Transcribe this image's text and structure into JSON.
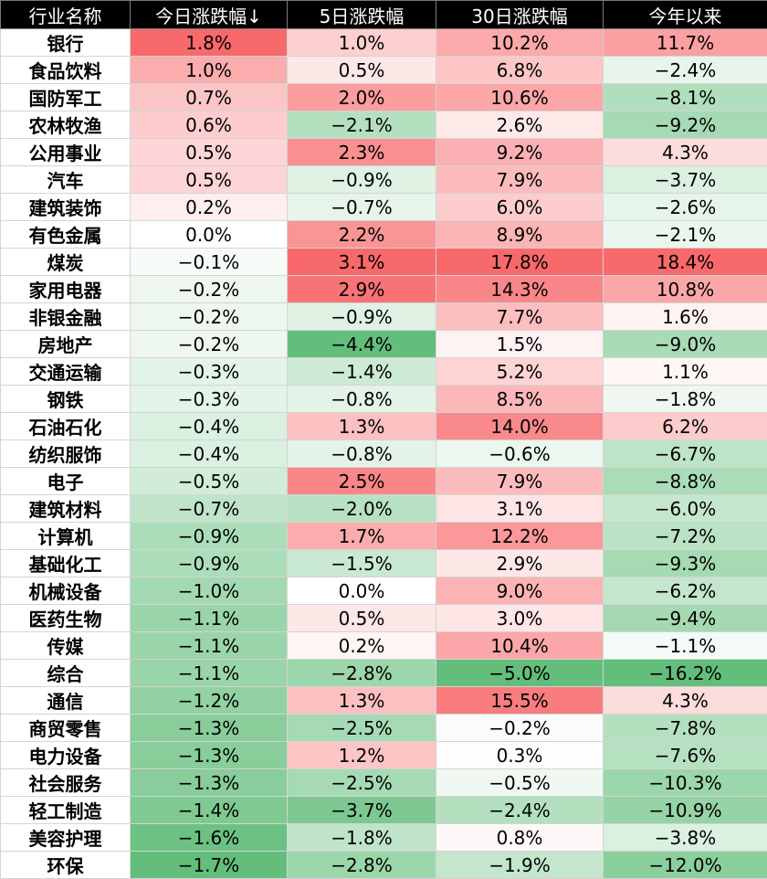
{
  "chart_data": {
    "type": "table",
    "columns": [
      "行业名称",
      "今日涨跌幅↓",
      "5日涨跌幅",
      "30日涨跌幅",
      "今年以来"
    ],
    "rows": [
      {
        "name": "银行",
        "cells": [
          "1.8%",
          "1.0%",
          "10.2%",
          "11.7%"
        ],
        "values": [
          1.8,
          1.0,
          10.2,
          11.7
        ]
      },
      {
        "name": "食品饮料",
        "cells": [
          "1.0%",
          "0.5%",
          "6.8%",
          "−2.4%"
        ],
        "values": [
          1.0,
          0.5,
          6.8,
          -2.4
        ]
      },
      {
        "name": "国防军工",
        "cells": [
          "0.7%",
          "2.0%",
          "10.6%",
          "−8.1%"
        ],
        "values": [
          0.7,
          2.0,
          10.6,
          -8.1
        ]
      },
      {
        "name": "农林牧渔",
        "cells": [
          "0.6%",
          "−2.1%",
          "2.6%",
          "−9.2%"
        ],
        "values": [
          0.6,
          -2.1,
          2.6,
          -9.2
        ]
      },
      {
        "name": "公用事业",
        "cells": [
          "0.5%",
          "2.3%",
          "9.2%",
          "4.3%"
        ],
        "values": [
          0.5,
          2.3,
          9.2,
          4.3
        ]
      },
      {
        "name": "汽车",
        "cells": [
          "0.5%",
          "−0.9%",
          "7.9%",
          "−3.7%"
        ],
        "values": [
          0.5,
          -0.9,
          7.9,
          -3.7
        ]
      },
      {
        "name": "建筑装饰",
        "cells": [
          "0.2%",
          "−0.7%",
          "6.0%",
          "−2.6%"
        ],
        "values": [
          0.2,
          -0.7,
          6.0,
          -2.6
        ]
      },
      {
        "name": "有色金属",
        "cells": [
          "0.0%",
          "2.2%",
          "8.9%",
          "−2.1%"
        ],
        "values": [
          0.0,
          2.2,
          8.9,
          -2.1
        ]
      },
      {
        "name": "煤炭",
        "cells": [
          "−0.1%",
          "3.1%",
          "17.8%",
          "18.4%"
        ],
        "values": [
          -0.1,
          3.1,
          17.8,
          18.4
        ]
      },
      {
        "name": "家用电器",
        "cells": [
          "−0.2%",
          "2.9%",
          "14.3%",
          "10.8%"
        ],
        "values": [
          -0.2,
          2.9,
          14.3,
          10.8
        ]
      },
      {
        "name": "非银金融",
        "cells": [
          "−0.2%",
          "−0.9%",
          "7.7%",
          "1.6%"
        ],
        "values": [
          -0.2,
          -0.9,
          7.7,
          1.6
        ]
      },
      {
        "name": "房地产",
        "cells": [
          "−0.2%",
          "−4.4%",
          "1.5%",
          "−9.0%"
        ],
        "values": [
          -0.2,
          -4.4,
          1.5,
          -9.0
        ]
      },
      {
        "name": "交通运输",
        "cells": [
          "−0.3%",
          "−1.4%",
          "5.2%",
          "1.1%"
        ],
        "values": [
          -0.3,
          -1.4,
          5.2,
          1.1
        ]
      },
      {
        "name": "钢铁",
        "cells": [
          "−0.3%",
          "−0.8%",
          "8.5%",
          "−1.8%"
        ],
        "values": [
          -0.3,
          -0.8,
          8.5,
          -1.8
        ]
      },
      {
        "name": "石油石化",
        "cells": [
          "−0.4%",
          "1.3%",
          "14.0%",
          "6.2%"
        ],
        "values": [
          -0.4,
          1.3,
          14.0,
          6.2
        ]
      },
      {
        "name": "纺织服饰",
        "cells": [
          "−0.4%",
          "−0.8%",
          "−0.6%",
          "−6.7%"
        ],
        "values": [
          -0.4,
          -0.8,
          -0.6,
          -6.7
        ]
      },
      {
        "name": "电子",
        "cells": [
          "−0.5%",
          "2.5%",
          "7.9%",
          "−8.8%"
        ],
        "values": [
          -0.5,
          2.5,
          7.9,
          -8.8
        ]
      },
      {
        "name": "建筑材料",
        "cells": [
          "−0.7%",
          "−2.0%",
          "3.1%",
          "−6.0%"
        ],
        "values": [
          -0.7,
          -2.0,
          3.1,
          -6.0
        ]
      },
      {
        "name": "计算机",
        "cells": [
          "−0.9%",
          "1.7%",
          "12.2%",
          "−7.2%"
        ],
        "values": [
          -0.9,
          1.7,
          12.2,
          -7.2
        ]
      },
      {
        "name": "基础化工",
        "cells": [
          "−0.9%",
          "−1.5%",
          "2.9%",
          "−9.3%"
        ],
        "values": [
          -0.9,
          -1.5,
          2.9,
          -9.3
        ]
      },
      {
        "name": "机械设备",
        "cells": [
          "−1.0%",
          "0.0%",
          "9.0%",
          "−6.2%"
        ],
        "values": [
          -1.0,
          0.0,
          9.0,
          -6.2
        ]
      },
      {
        "name": "医药生物",
        "cells": [
          "−1.1%",
          "0.5%",
          "3.0%",
          "−9.4%"
        ],
        "values": [
          -1.1,
          0.5,
          3.0,
          -9.4
        ]
      },
      {
        "name": "传媒",
        "cells": [
          "−1.1%",
          "0.2%",
          "10.4%",
          "−1.1%"
        ],
        "values": [
          -1.1,
          0.2,
          10.4,
          -1.1
        ]
      },
      {
        "name": "综合",
        "cells": [
          "−1.1%",
          "−2.8%",
          "−5.0%",
          "−16.2%"
        ],
        "values": [
          -1.1,
          -2.8,
          -5.0,
          -16.2
        ]
      },
      {
        "name": "通信",
        "cells": [
          "−1.2%",
          "1.3%",
          "15.5%",
          "4.3%"
        ],
        "values": [
          -1.2,
          1.3,
          15.5,
          4.3
        ]
      },
      {
        "name": "商贸零售",
        "cells": [
          "−1.3%",
          "−2.5%",
          "−0.2%",
          "−7.8%"
        ],
        "values": [
          -1.3,
          -2.5,
          -0.2,
          -7.8
        ]
      },
      {
        "name": "电力设备",
        "cells": [
          "−1.3%",
          "1.2%",
          "0.3%",
          "−7.6%"
        ],
        "values": [
          -1.3,
          1.2,
          0.3,
          -7.6
        ]
      },
      {
        "name": "社会服务",
        "cells": [
          "−1.3%",
          "−2.5%",
          "−0.5%",
          "−10.3%"
        ],
        "values": [
          -1.3,
          -2.5,
          -0.5,
          -10.3
        ]
      },
      {
        "name": "轻工制造",
        "cells": [
          "−1.4%",
          "−3.7%",
          "−2.4%",
          "−10.9%"
        ],
        "values": [
          -1.4,
          -3.7,
          -2.4,
          -10.9
        ]
      },
      {
        "name": "美容护理",
        "cells": [
          "−1.6%",
          "−1.8%",
          "0.8%",
          "−3.8%"
        ],
        "values": [
          -1.6,
          -1.8,
          0.8,
          -3.8
        ]
      },
      {
        "name": "环保",
        "cells": [
          "−1.7%",
          "−2.8%",
          "−1.9%",
          "−12.0%"
        ],
        "values": [
          -1.7,
          -2.8,
          -1.9,
          -12.0
        ]
      }
    ],
    "colors": {
      "header_bg": "#000000",
      "header_text": "#ffffff",
      "positive_max": "#f8696b",
      "negative_max": "#63be7b",
      "neutral": "#ffffff"
    }
  }
}
